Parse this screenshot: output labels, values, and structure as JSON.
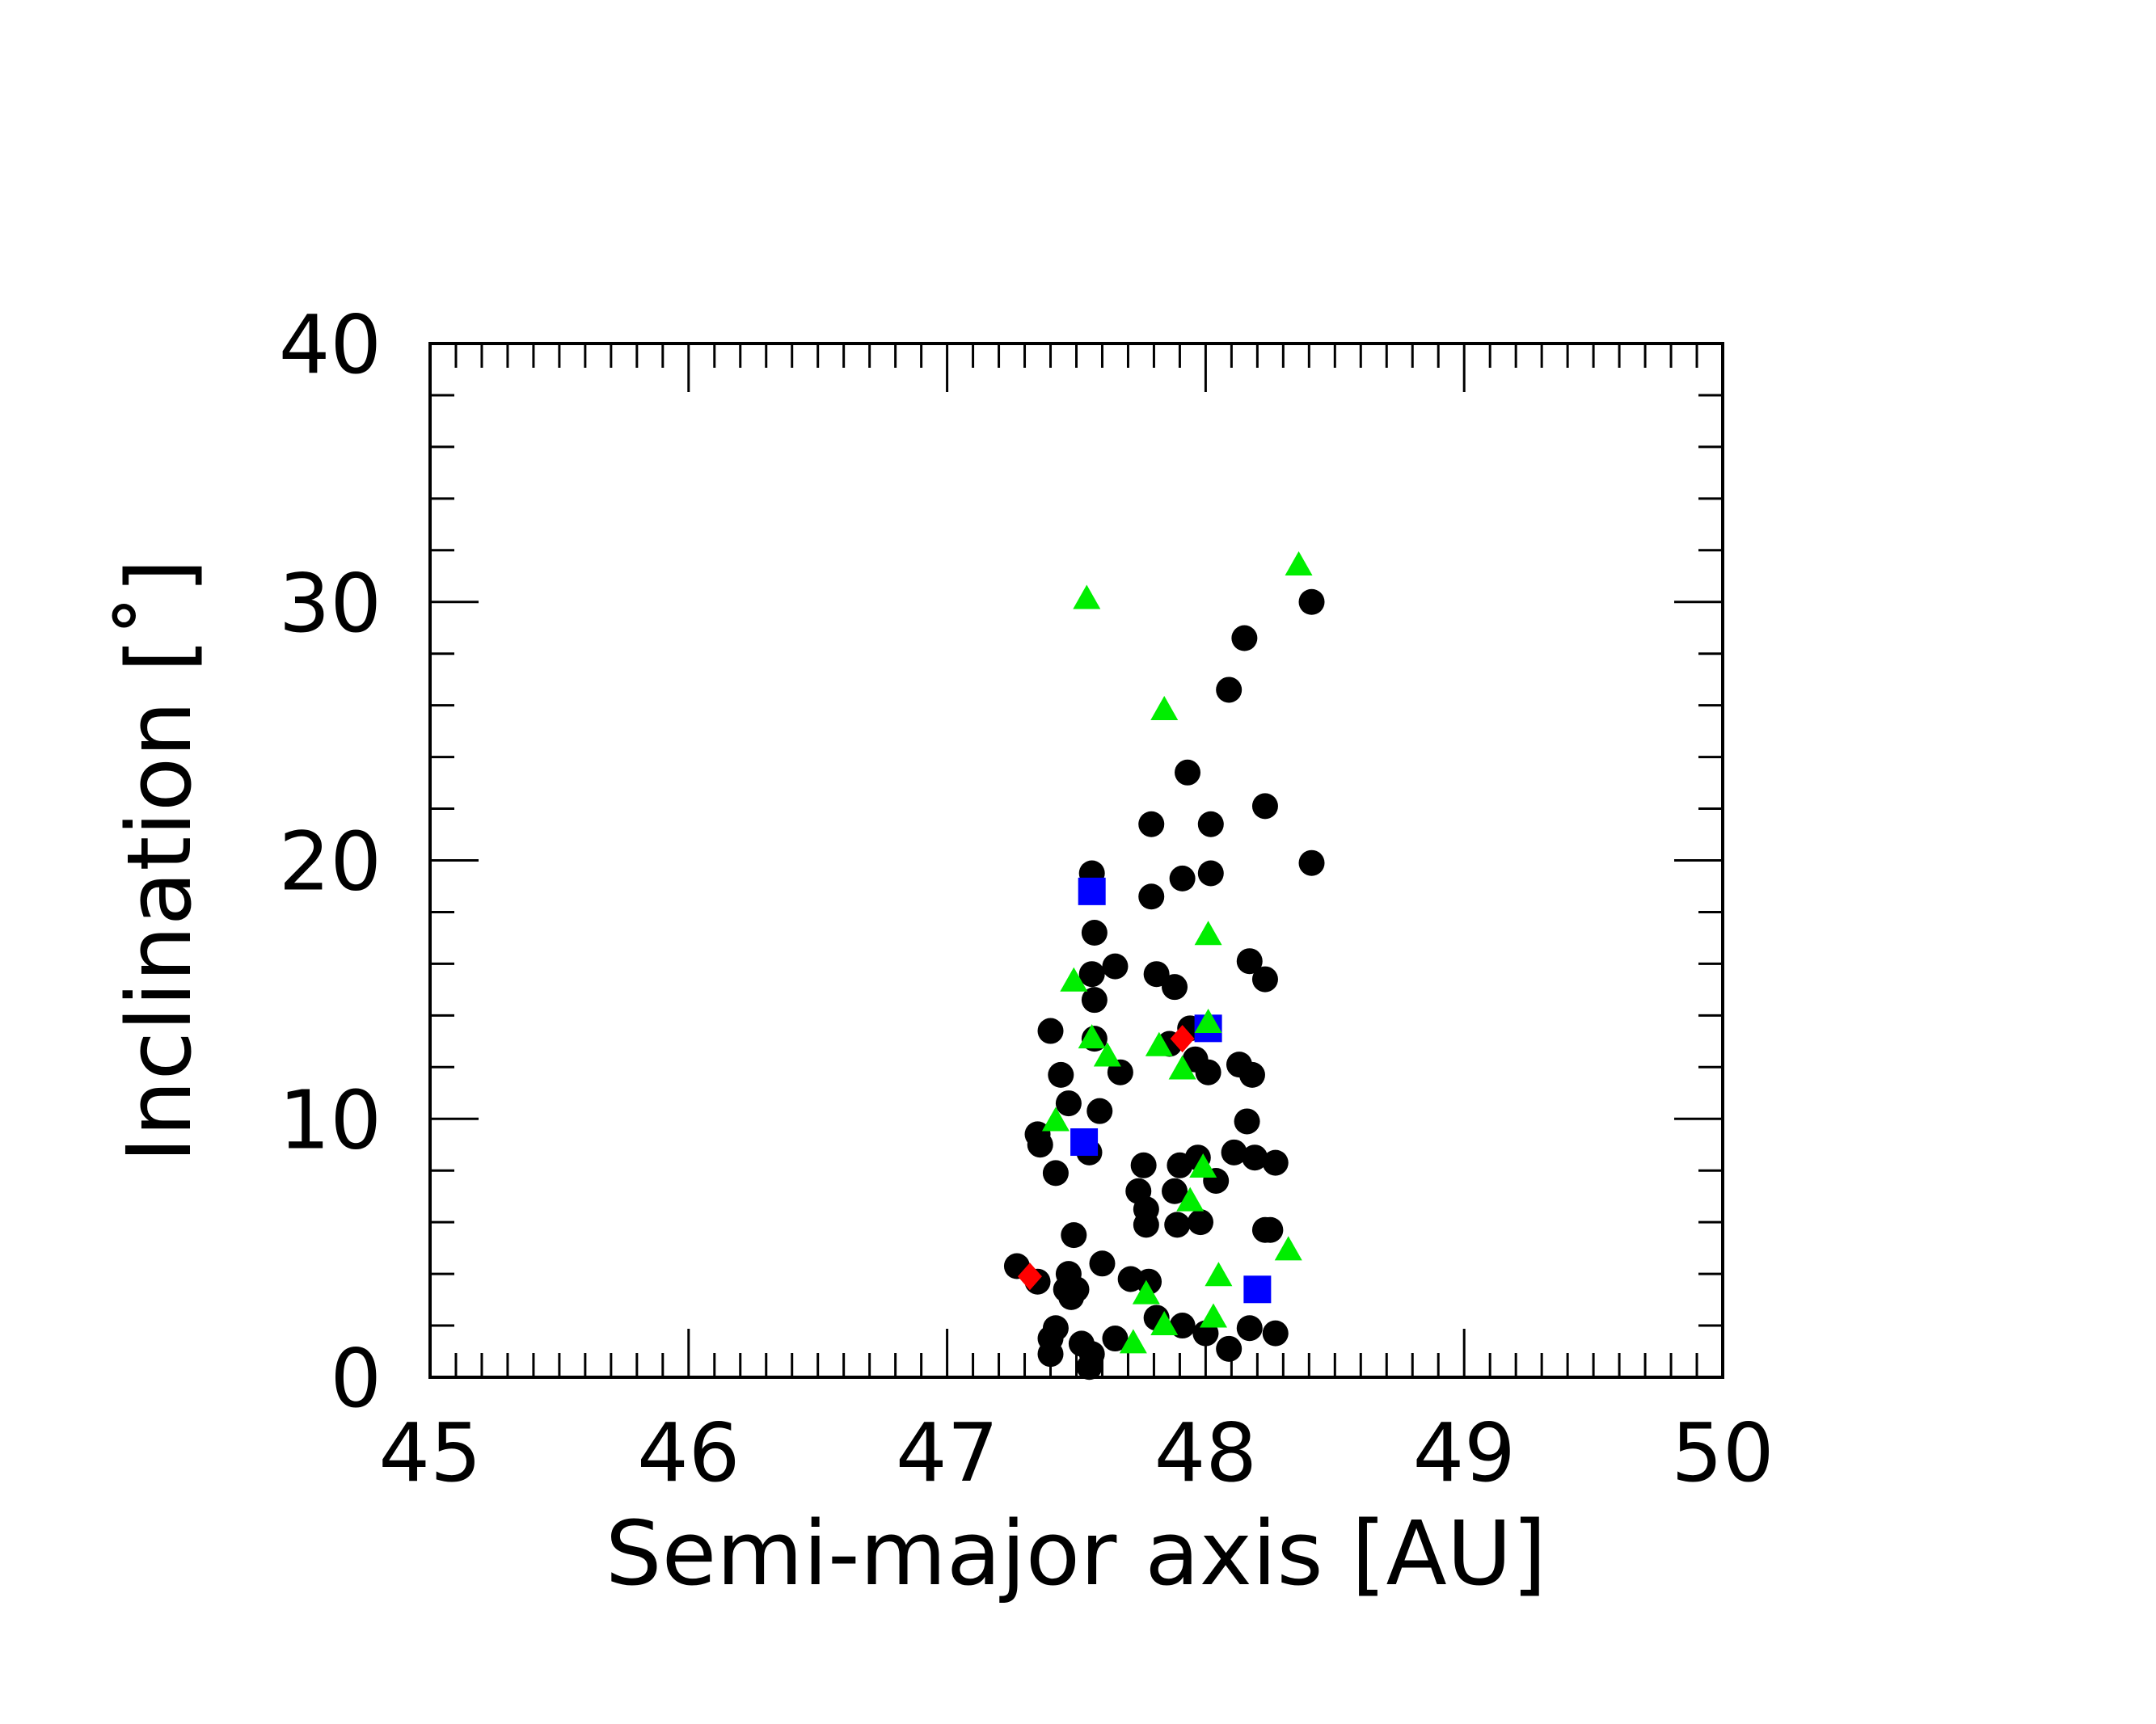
{
  "chart_data": {
    "type": "scatter",
    "x_label": "Semi-major axis [AU]",
    "y_label": "Inclination [˚]",
    "xlim": [
      45,
      50
    ],
    "xticks": [
      45,
      46,
      47,
      48,
      49,
      50
    ],
    "ylim": [
      0,
      40
    ],
    "yticks": [
      0,
      10,
      20,
      30,
      40
    ],
    "series": [
      {
        "color": "#000000",
        "marker": "circle",
        "x": [
          48.41,
          48.15,
          48.09,
          47.93,
          48.23,
          47.79,
          48.02,
          48.41,
          47.56,
          48.02,
          47.91,
          47.79,
          47.57,
          48.17,
          47.65,
          47.56,
          47.81,
          48.23,
          47.88,
          47.57,
          47.4,
          47.57,
          47.94,
          47.86,
          47.96,
          47.67,
          48.01,
          47.44,
          48.13,
          48.18,
          47.47,
          47.59,
          48.16,
          47.35,
          47.36,
          47.55,
          48.11,
          48.19,
          48.27,
          47.97,
          47.9,
          47.76,
          47.42,
          48.04,
          47.74,
          47.88,
          47.77,
          47.77,
          47.89,
          47.98,
          48.23,
          48.25,
          47.49,
          47.6,
          47.27,
          47.47,
          47.71,
          47.78,
          47.46,
          47.5,
          47.48,
          47.81,
          47.91,
          48.17,
          47.42,
          47.4,
          48.27,
          48.0,
          47.52,
          47.65,
          47.56,
          48.09,
          47.4,
          47.55,
          47.35
        ],
        "values": [
          30.0,
          28.6,
          26.6,
          23.4,
          22.1,
          21.4,
          21.4,
          19.9,
          19.5,
          19.5,
          19.3,
          18.6,
          17.2,
          16.1,
          15.9,
          15.6,
          15.6,
          15.4,
          15.1,
          14.6,
          13.4,
          13.1,
          13.5,
          12.9,
          12.3,
          11.8,
          11.8,
          11.7,
          12.1,
          11.7,
          10.6,
          10.3,
          9.9,
          9.4,
          9.0,
          8.7,
          8.7,
          8.5,
          8.3,
          8.5,
          8.2,
          8.2,
          7.9,
          7.6,
          7.2,
          7.2,
          6.5,
          5.9,
          5.9,
          6.0,
          5.7,
          5.7,
          5.5,
          4.4,
          4.3,
          4.0,
          3.8,
          3.7,
          3.4,
          3.4,
          3.1,
          2.3,
          2.0,
          1.9,
          1.9,
          1.5,
          1.7,
          1.7,
          1.3,
          1.5,
          0.9,
          1.1,
          0.9,
          0.4,
          3.7
        ]
      },
      {
        "color": "#0000ff",
        "marker": "square",
        "x": [
          47.56,
          48.01,
          47.53,
          48.2
        ],
        "values": [
          18.8,
          13.5,
          9.1,
          3.4
        ]
      },
      {
        "color": "#00ee00",
        "marker": "triangle",
        "x": [
          48.36,
          47.54,
          47.84,
          48.01,
          47.49,
          48.01,
          47.56,
          47.82,
          47.62,
          47.91,
          47.42,
          47.99,
          47.94,
          48.32,
          48.05,
          47.77,
          47.84,
          48.03,
          47.72
        ],
        "values": [
          31.4,
          30.1,
          25.8,
          17.1,
          15.3,
          13.7,
          13.1,
          12.8,
          12.4,
          11.9,
          9.9,
          8.1,
          6.8,
          4.9,
          3.9,
          3.2,
          2.0,
          2.3,
          1.3
        ]
      },
      {
        "color": "#ff0000",
        "marker": "diamond",
        "x": [
          47.32,
          47.91
        ],
        "values": [
          3.9,
          13.1
        ]
      }
    ]
  }
}
